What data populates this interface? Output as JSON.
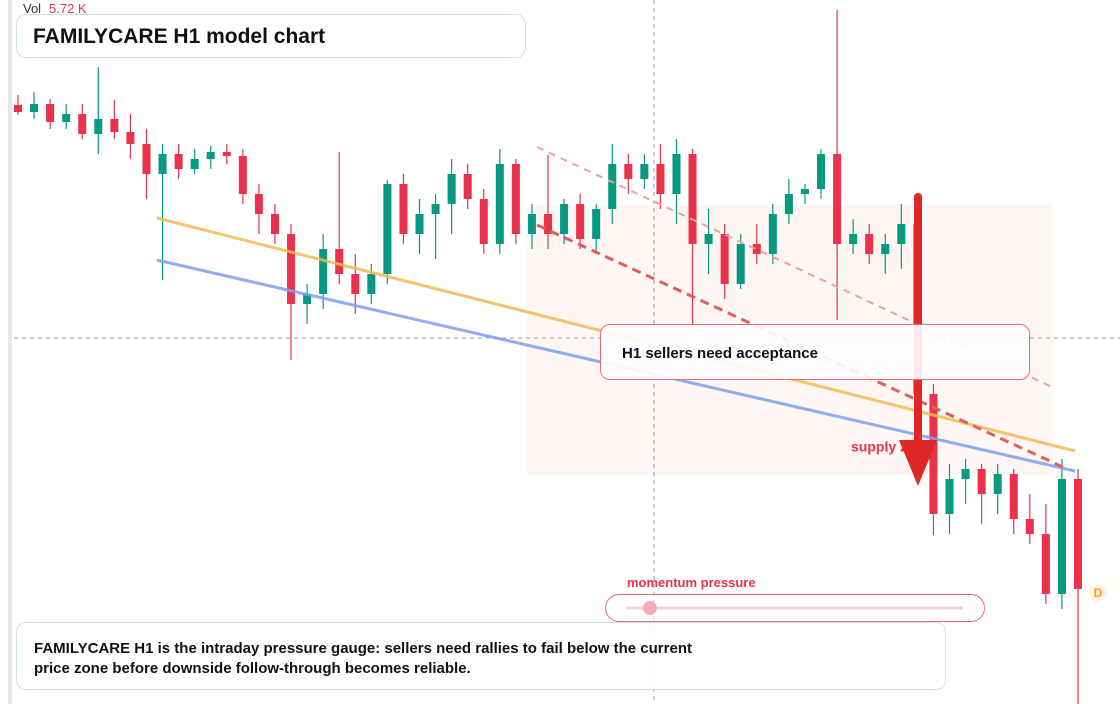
{
  "chart_data": {
    "type": "candlestick",
    "title": "FAMILYCARE H1 model chart",
    "volume_label": "Vol",
    "volume_value": "5.72 K",
    "annotation": "H1 sellers need acceptance",
    "zone_label": "supply zone",
    "gauge_label": "momentum pressure",
    "marker": "D",
    "caption": "FAMILYCARE H1 is the intraday pressure gauge: sellers need rallies to fail below the current price zone before downside follow-through becomes reliable.",
    "up_color": "#089981",
    "down_color": "#e8334a",
    "ylim": [
      0,
      704
    ],
    "candles": [
      [
        599,
        609,
        589,
        592
      ],
      [
        592,
        612,
        585,
        600
      ],
      [
        600,
        605,
        575,
        582
      ],
      [
        582,
        600,
        575,
        590
      ],
      [
        590,
        600,
        565,
        570
      ],
      [
        570,
        637,
        550,
        585
      ],
      [
        585,
        604,
        565,
        572
      ],
      [
        572,
        590,
        545,
        560
      ],
      [
        560,
        575,
        505,
        530
      ],
      [
        530,
        560,
        424,
        550
      ],
      [
        550,
        560,
        525,
        535
      ],
      [
        535,
        555,
        530,
        545
      ],
      [
        545,
        558,
        535,
        552
      ],
      [
        552,
        560,
        540,
        548
      ],
      [
        548,
        555,
        500,
        510
      ],
      [
        510,
        520,
        470,
        490
      ],
      [
        490,
        500,
        460,
        470
      ],
      [
        470,
        480,
        344,
        400
      ],
      [
        400,
        420,
        380,
        410
      ],
      [
        410,
        470,
        395,
        455
      ],
      [
        455,
        552,
        420,
        430
      ],
      [
        430,
        450,
        390,
        410
      ],
      [
        410,
        440,
        400,
        430
      ],
      [
        430,
        524,
        420,
        520
      ],
      [
        520,
        530,
        460,
        470
      ],
      [
        470,
        505,
        450,
        490
      ],
      [
        490,
        510,
        445,
        500
      ],
      [
        500,
        545,
        470,
        530
      ],
      [
        530,
        540,
        495,
        505
      ],
      [
        505,
        515,
        450,
        460
      ],
      [
        460,
        555,
        450,
        540
      ],
      [
        540,
        545,
        460,
        470
      ],
      [
        470,
        500,
        455,
        490
      ],
      [
        490,
        549,
        455,
        470
      ],
      [
        470,
        505,
        460,
        500
      ],
      [
        500,
        510,
        455,
        465
      ],
      [
        465,
        500,
        450,
        495
      ],
      [
        495,
        560,
        480,
        540
      ],
      [
        540,
        550,
        510,
        525
      ],
      [
        525,
        550,
        515,
        540
      ],
      [
        540,
        560,
        495,
        510
      ],
      [
        510,
        565,
        480,
        550
      ],
      [
        550,
        555,
        379,
        460
      ],
      [
        460,
        495,
        430,
        470
      ],
      [
        470,
        480,
        405,
        420
      ],
      [
        420,
        470,
        415,
        460
      ],
      [
        460,
        480,
        440,
        450
      ],
      [
        450,
        500,
        440,
        490
      ],
      [
        490,
        525,
        480,
        510
      ],
      [
        510,
        520,
        500,
        515
      ],
      [
        515,
        555,
        505,
        550
      ],
      [
        550,
        694,
        384,
        460
      ],
      [
        460,
        485,
        450,
        470
      ],
      [
        470,
        480,
        440,
        450
      ],
      [
        450,
        470,
        430,
        460
      ],
      [
        460,
        500,
        435,
        480
      ],
      [
        480,
        500,
        290,
        310
      ],
      [
        310,
        320,
        169,
        190
      ],
      [
        190,
        240,
        170,
        225
      ],
      [
        225,
        245,
        200,
        235
      ],
      [
        235,
        240,
        180,
        210
      ],
      [
        210,
        240,
        190,
        230
      ],
      [
        230,
        235,
        170,
        185
      ],
      [
        185,
        210,
        160,
        170
      ],
      [
        170,
        200,
        100,
        110
      ],
      [
        110,
        245,
        95,
        225
      ],
      [
        225,
        235,
        0,
        115
      ]
    ]
  }
}
